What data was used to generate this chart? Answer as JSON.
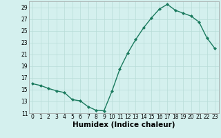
{
  "x": [
    0,
    1,
    2,
    3,
    4,
    5,
    6,
    7,
    8,
    9,
    10,
    11,
    12,
    13,
    14,
    15,
    16,
    17,
    18,
    19,
    20,
    21,
    22,
    23
  ],
  "y": [
    16.0,
    15.7,
    15.2,
    14.8,
    14.5,
    13.3,
    13.1,
    12.1,
    11.5,
    11.4,
    14.7,
    18.5,
    21.2,
    23.5,
    25.5,
    27.2,
    28.7,
    29.5,
    28.5,
    28.0,
    27.5,
    26.5,
    23.8,
    22.0
  ],
  "line_color": "#1a7a5e",
  "marker": "D",
  "marker_size": 2.0,
  "bg_color": "#d4f0ee",
  "grid_color": "#b8dcd8",
  "xlabel": "Humidex (Indice chaleur)",
  "ylim": [
    11,
    30
  ],
  "xlim": [
    -0.5,
    23.5
  ],
  "yticks": [
    11,
    13,
    15,
    17,
    19,
    21,
    23,
    25,
    27,
    29
  ],
  "xticks": [
    0,
    1,
    2,
    3,
    4,
    5,
    6,
    7,
    8,
    9,
    10,
    11,
    12,
    13,
    14,
    15,
    16,
    17,
    18,
    19,
    20,
    21,
    22,
    23
  ],
  "tick_fontsize": 5.5,
  "xlabel_fontsize": 7.5,
  "line_width": 1.0
}
